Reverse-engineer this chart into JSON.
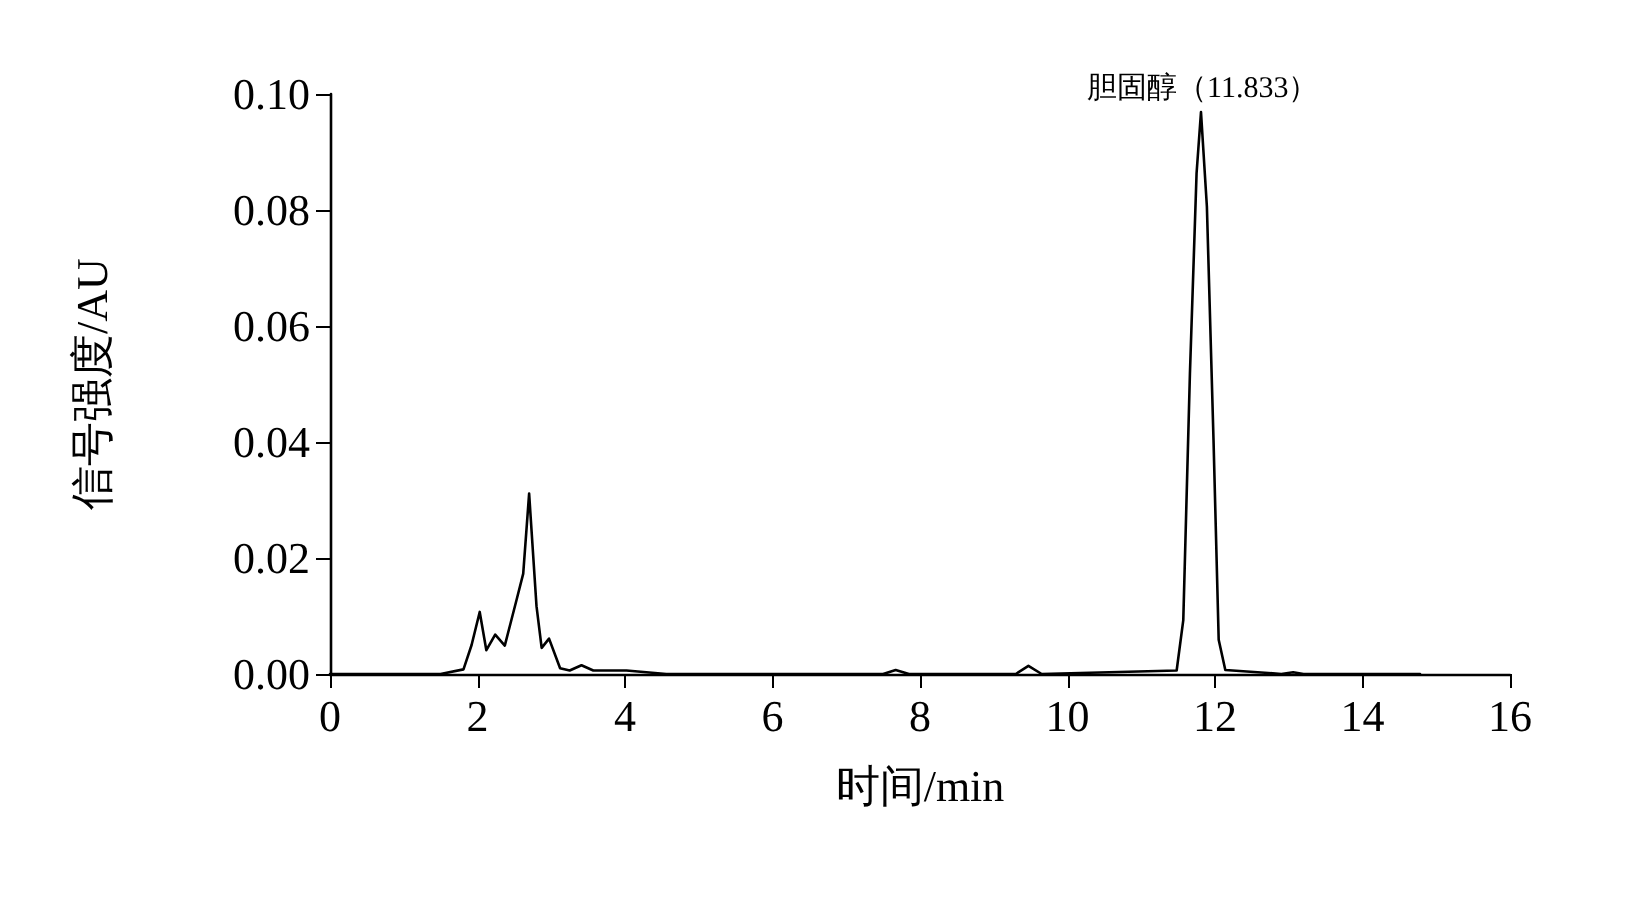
{
  "chart_data": {
    "type": "line",
    "xlabel": "时间/min",
    "ylabel": "信号强度/AU",
    "annotations": [
      {
        "text": "胆固醇（11.833）",
        "x": 11.833,
        "y": 0.0969
      }
    ],
    "series": [
      {
        "color": "#000000",
        "x": [
          0,
          1.5,
          1.81,
          1.92,
          2.03,
          2.12,
          2.24,
          2.37,
          2.53,
          2.62,
          2.7,
          2.8,
          2.87,
          2.97,
          3.12,
          3.25,
          3.41,
          3.57,
          4.02,
          4.56,
          7.5,
          7.67,
          7.85,
          9.3,
          9.47,
          9.65,
          11.48,
          11.57,
          11.66,
          11.75,
          11.81,
          11.89,
          11.98,
          12.05,
          12.14,
          12.9,
          13.06,
          13.2,
          14.78
        ],
        "values": [
          0,
          0,
          0.0008,
          0.005,
          0.0107,
          0.0041,
          0.0068,
          0.0049,
          0.0128,
          0.0173,
          0.0311,
          0.0117,
          0.0045,
          0.0061,
          0.001,
          0.0006,
          0.0015,
          0.0006,
          0.0006,
          0,
          0,
          0.0007,
          0,
          0,
          0.0014,
          0,
          0.0006,
          0.0093,
          0.0518,
          0.0863,
          0.0969,
          0.0806,
          0.0403,
          0.0059,
          0.0007,
          0,
          0.0003,
          0,
          0
        ]
      }
    ],
    "xlim": [
      0,
      16
    ],
    "xticks": [
      0,
      2,
      4,
      6,
      8,
      10,
      12,
      14,
      16
    ],
    "ylim": [
      0,
      0.1
    ],
    "yticks": [
      {
        "value": 0,
        "label": "0.00"
      },
      {
        "value": 0.02,
        "label": "0.02"
      },
      {
        "value": 0.04,
        "label": "0.04"
      },
      {
        "value": 0.06,
        "label": "0.06"
      },
      {
        "value": 0.08,
        "label": "0.08"
      },
      {
        "value": 0.1,
        "label": "0.10"
      }
    ],
    "grid": false,
    "marker": "none",
    "line_style": "solid"
  }
}
